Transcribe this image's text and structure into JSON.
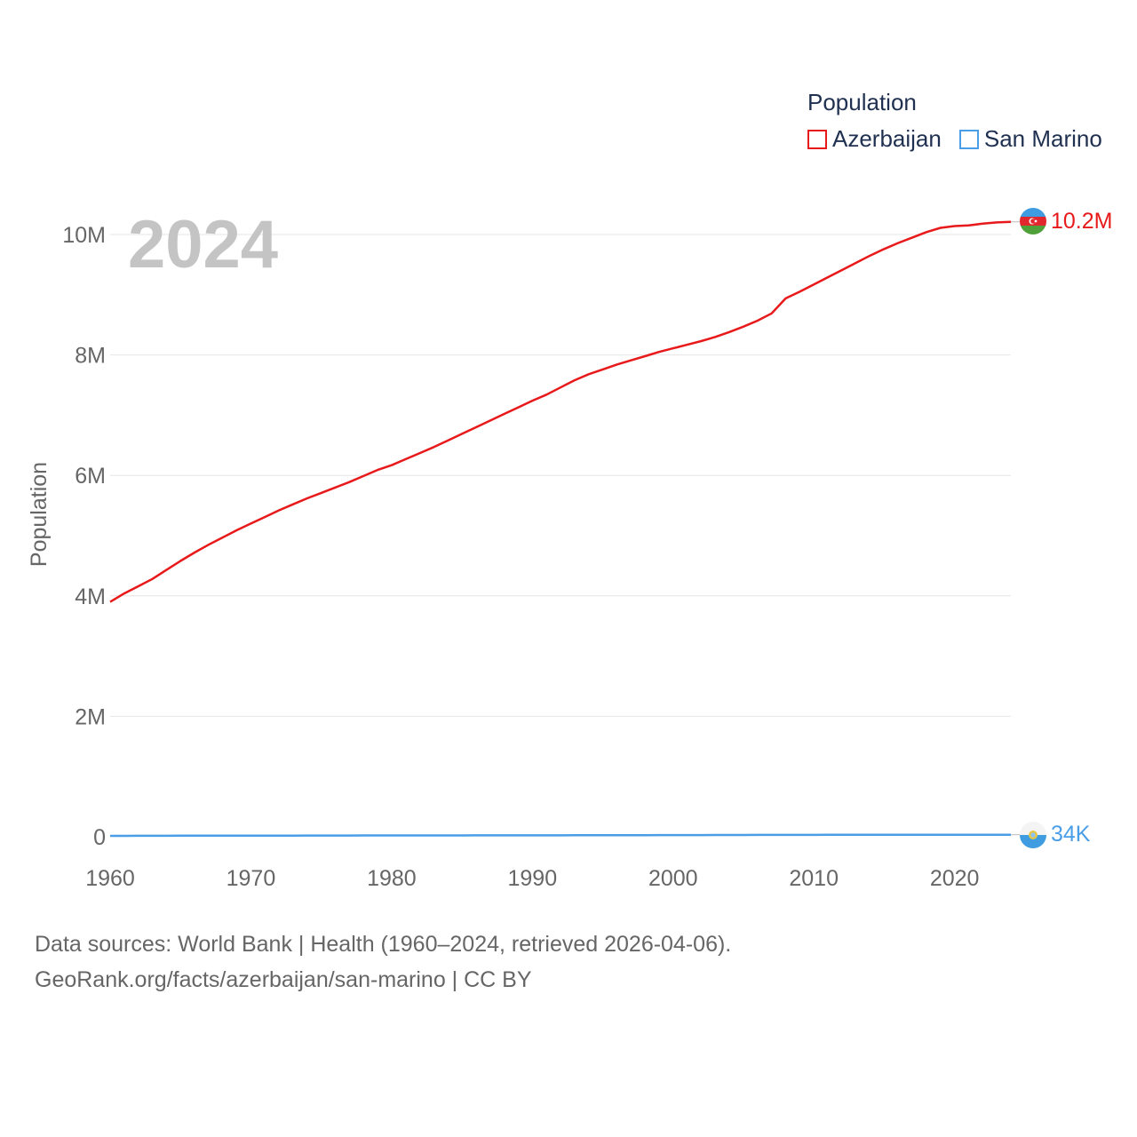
{
  "legend": {
    "title": "Population",
    "series": [
      {
        "name": "Azerbaijan",
        "color": "#e8191a"
      },
      {
        "name": "San Marino",
        "color": "#4a9ee8"
      }
    ]
  },
  "year_label": "2024",
  "end_labels": {
    "azerbaijan": "10.2M",
    "san_marino": "34K"
  },
  "flags": {
    "azerbaijan": "azerbaijan-flag-icon",
    "san_marino": "san-marino-flag-icon"
  },
  "footer": {
    "line1": "Data sources: World Bank | Health (1960–2024, retrieved 2026-04-06).",
    "line2": "GeoRank.org/facts/azerbaijan/san-marino | CC BY"
  },
  "chart_data": {
    "type": "line",
    "title": "",
    "xlabel": "",
    "ylabel": "Population",
    "xlim": [
      1960,
      2024
    ],
    "ylim": [
      0,
      10000000
    ],
    "x_ticks": [
      1960,
      1970,
      1980,
      1990,
      2000,
      2010,
      2020
    ],
    "y_ticks": [
      0,
      2000000,
      4000000,
      6000000,
      8000000,
      10000000
    ],
    "y_tick_labels": [
      "0",
      "2M",
      "4M",
      "6M",
      "8M",
      "10M"
    ],
    "grid": true,
    "x": [
      1960,
      1961,
      1962,
      1963,
      1964,
      1965,
      1966,
      1967,
      1968,
      1969,
      1970,
      1971,
      1972,
      1973,
      1974,
      1975,
      1976,
      1977,
      1978,
      1979,
      1980,
      1981,
      1982,
      1983,
      1984,
      1985,
      1986,
      1987,
      1988,
      1989,
      1990,
      1991,
      1992,
      1993,
      1994,
      1995,
      1996,
      1997,
      1998,
      1999,
      2000,
      2001,
      2002,
      2003,
      2004,
      2005,
      2006,
      2007,
      2008,
      2009,
      2010,
      2011,
      2012,
      2013,
      2014,
      2015,
      2016,
      2017,
      2018,
      2019,
      2020,
      2021,
      2022,
      2023,
      2024
    ],
    "series": [
      {
        "name": "Azerbaijan",
        "color": "#e8191a",
        "values": [
          3900000,
          4040000,
          4160000,
          4280000,
          4430000,
          4580000,
          4720000,
          4850000,
          4970000,
          5090000,
          5200000,
          5310000,
          5420000,
          5520000,
          5620000,
          5710000,
          5800000,
          5890000,
          5990000,
          6090000,
          6170000,
          6270000,
          6370000,
          6470000,
          6580000,
          6690000,
          6800000,
          6910000,
          7020000,
          7130000,
          7240000,
          7340000,
          7460000,
          7580000,
          7680000,
          7760000,
          7840000,
          7910000,
          7980000,
          8050000,
          8110000,
          8170000,
          8230000,
          8300000,
          8380000,
          8470000,
          8570000,
          8690000,
          8940000,
          9050000,
          9170000,
          9290000,
          9410000,
          9530000,
          9650000,
          9760000,
          9860000,
          9950000,
          10040000,
          10110000,
          10140000,
          10150000,
          10180000,
          10200000,
          10210000
        ]
      },
      {
        "name": "San Marino",
        "color": "#4a9ee8",
        "values": [
          15000,
          15400,
          15800,
          16200,
          16600,
          17000,
          17400,
          17800,
          18200,
          18600,
          19000,
          19200,
          19400,
          19700,
          20000,
          20400,
          20800,
          21200,
          21500,
          21700,
          21900,
          22000,
          22100,
          22300,
          22500,
          22700,
          22900,
          23100,
          23300,
          23500,
          23700,
          24000,
          24300,
          24700,
          25100,
          25600,
          26000,
          26500,
          27000,
          27400,
          27800,
          28200,
          28700,
          29200,
          29700,
          30100,
          30500,
          30900,
          31200,
          31400,
          31600,
          31800,
          32000,
          32300,
          32600,
          32800,
          33000,
          33300,
          33600,
          33800,
          34000,
          34100,
          34000,
          33900,
          34000
        ]
      }
    ]
  }
}
